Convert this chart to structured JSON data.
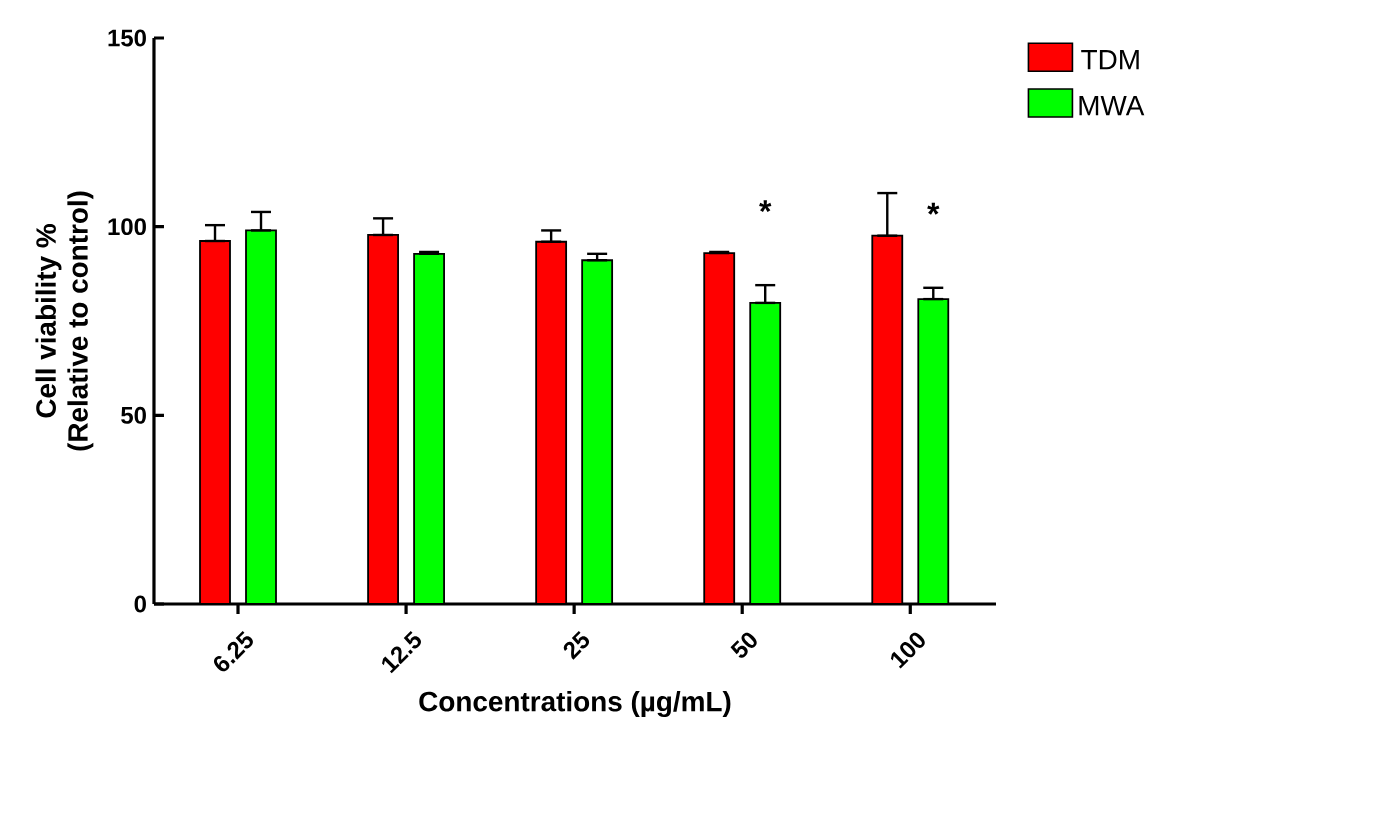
{
  "chart_data": {
    "type": "bar",
    "xlabel": "Concentrations (µg/mL)",
    "ylabel": "Cell viability %\n(Relative to control)",
    "categories": [
      "6.25",
      "12.5",
      "25",
      "50",
      "100"
    ],
    "series": [
      {
        "name": "TDM",
        "color": "#ff0000",
        "values": [
          96.2,
          97.8,
          96.0,
          93.0,
          97.6
        ],
        "errors": [
          [
            96.2,
            100.4
          ],
          [
            97.8,
            102.2
          ],
          [
            96.0,
            99.0
          ],
          [
            93.0,
            93.3
          ],
          [
            97.6,
            108.9
          ]
        ]
      },
      {
        "name": "MWA",
        "color": "#00ff00",
        "values": [
          99.0,
          92.8,
          91.1,
          79.8,
          80.8
        ],
        "errors": [
          [
            99.0,
            103.9
          ],
          [
            92.8,
            93.3
          ],
          [
            91.1,
            92.8
          ],
          [
            79.8,
            84.5
          ],
          [
            80.8,
            83.8
          ]
        ]
      }
    ],
    "annotations": [
      {
        "text": "*",
        "x": "50",
        "y": 84.5
      },
      {
        "text": "*",
        "x": "100",
        "y": 83.8
      }
    ],
    "ylim": [
      0,
      150
    ],
    "yticks": [
      0,
      50,
      100,
      150
    ],
    "grid": false,
    "legend": "top right"
  }
}
